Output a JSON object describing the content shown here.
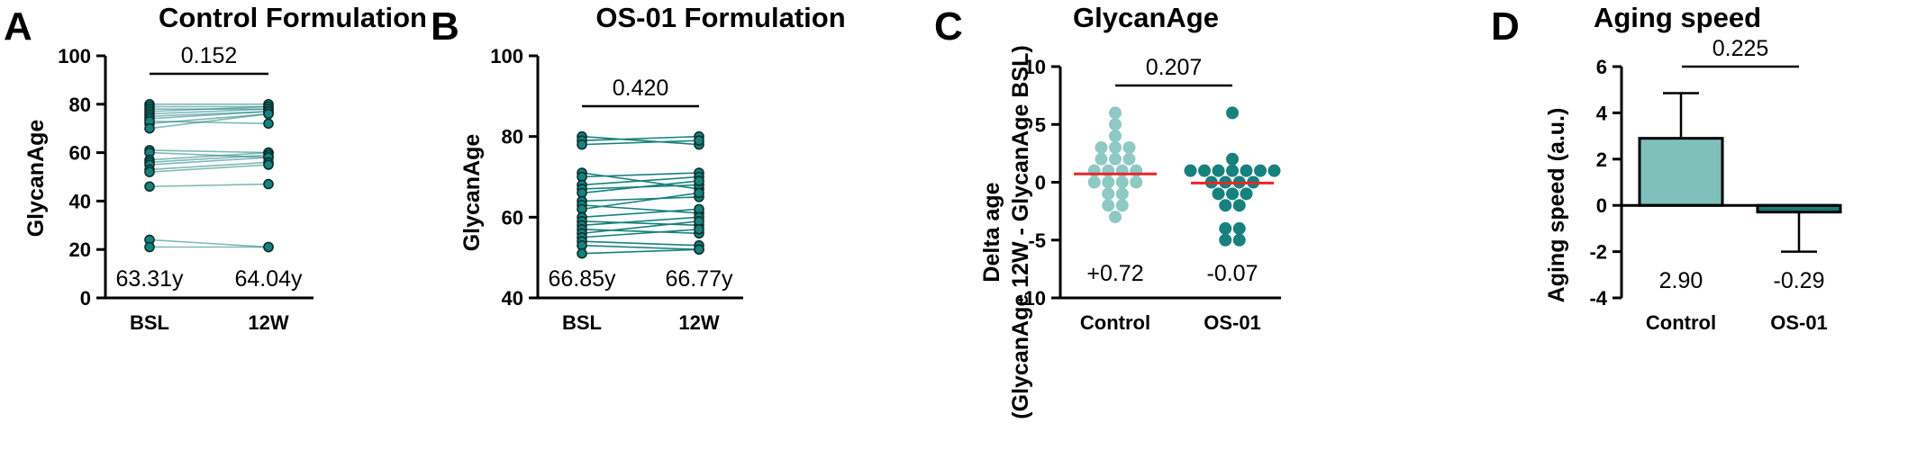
{
  "colors": {
    "control": "#8ec9c4",
    "os01": "#17817d",
    "pairline": "#17817d",
    "mean": "#e8262b",
    "bar_control": "#7fc0ba",
    "bar_os01": "#197d78"
  },
  "chart_data": [
    {
      "panel": "A",
      "type": "line",
      "subtype": "paired-before-after",
      "title": "Control Formulation",
      "xlabel": "",
      "ylabel": "GlycanAge",
      "ylim": [
        0,
        100
      ],
      "yticks": [
        0,
        20,
        40,
        60,
        80,
        100
      ],
      "categories": [
        "BSL",
        "12W"
      ],
      "pairs": [
        [
          80,
          80
        ],
        [
          79,
          79
        ],
        [
          78,
          78
        ],
        [
          77,
          79
        ],
        [
          76,
          78
        ],
        [
          75,
          77
        ],
        [
          74,
          77
        ],
        [
          72,
          76
        ],
        [
          73,
          72
        ],
        [
          70,
          76
        ],
        [
          61,
          60
        ],
        [
          60,
          58
        ],
        [
          57,
          60
        ],
        [
          56,
          59
        ],
        [
          55,
          58
        ],
        [
          53,
          56
        ],
        [
          52,
          55
        ],
        [
          46,
          47
        ],
        [
          24,
          21
        ],
        [
          21,
          21
        ]
      ],
      "annotations": [
        "63.31y",
        "64.04y"
      ],
      "pvalue": "0.152"
    },
    {
      "panel": "B",
      "type": "line",
      "subtype": "paired-before-after",
      "title": "OS-01 Formulation",
      "xlabel": "",
      "ylabel": "GlycanAge",
      "ylim": [
        40,
        100
      ],
      "yticks": [
        40,
        60,
        80,
        100
      ],
      "categories": [
        "BSL",
        "12W"
      ],
      "pairs": [
        [
          80,
          78
        ],
        [
          79,
          80
        ],
        [
          78,
          79
        ],
        [
          71,
          67
        ],
        [
          70,
          71
        ],
        [
          68,
          70
        ],
        [
          67,
          68
        ],
        [
          66,
          69
        ],
        [
          64,
          65
        ],
        [
          63,
          61
        ],
        [
          62,
          66
        ],
        [
          60,
          62
        ],
        [
          59,
          58
        ],
        [
          58,
          60
        ],
        [
          57,
          56
        ],
        [
          56,
          59
        ],
        [
          55,
          57
        ],
        [
          54,
          53
        ],
        [
          53,
          52
        ],
        [
          51,
          52
        ]
      ],
      "annotations": [
        "66.85y",
        "66.77y"
      ],
      "pvalue": "0.420"
    },
    {
      "panel": "C",
      "type": "scatter",
      "subtype": "dot-plot-with-mean",
      "title": "GlycanAge",
      "xlabel": "",
      "ylabel_lines": [
        "Delta age",
        "(GlycanAge 12W - GlycanAge BSL)"
      ],
      "ylim": [
        -10,
        10
      ],
      "yticks": [
        -10,
        -5,
        0,
        5,
        10
      ],
      "categories": [
        "Control",
        "OS-01"
      ],
      "series": [
        {
          "category": "Control",
          "values": [
            6,
            5,
            4,
            3,
            3,
            3,
            2,
            2,
            2,
            1,
            1,
            1,
            1,
            0,
            0,
            0,
            0,
            -1,
            -1,
            -2,
            -2,
            -3
          ],
          "mean": 0.72
        },
        {
          "category": "OS-01",
          "values": [
            6,
            2,
            1,
            1,
            1,
            1,
            1,
            1,
            1,
            0,
            0,
            0,
            0,
            -1,
            -1,
            -1,
            -2,
            -2,
            -4,
            -4,
            -5,
            -5
          ],
          "mean": -0.07
        }
      ],
      "annotations": [
        "+0.72",
        "-0.07"
      ],
      "pvalue": "0.207"
    },
    {
      "panel": "D",
      "type": "bar",
      "title": "Aging speed",
      "xlabel": "",
      "ylabel": "Aging speed (a.u.)",
      "ylim": [
        -4,
        6
      ],
      "yticks": [
        -4,
        -2,
        0,
        2,
        4,
        6
      ],
      "categories": [
        "Control",
        "OS-01"
      ],
      "values": [
        2.9,
        -0.29
      ],
      "errors": [
        {
          "upper": 4.85
        },
        {
          "lower": -2.0
        }
      ],
      "annotations": [
        "2.90",
        "-0.29"
      ],
      "pvalue": "0.225"
    }
  ]
}
